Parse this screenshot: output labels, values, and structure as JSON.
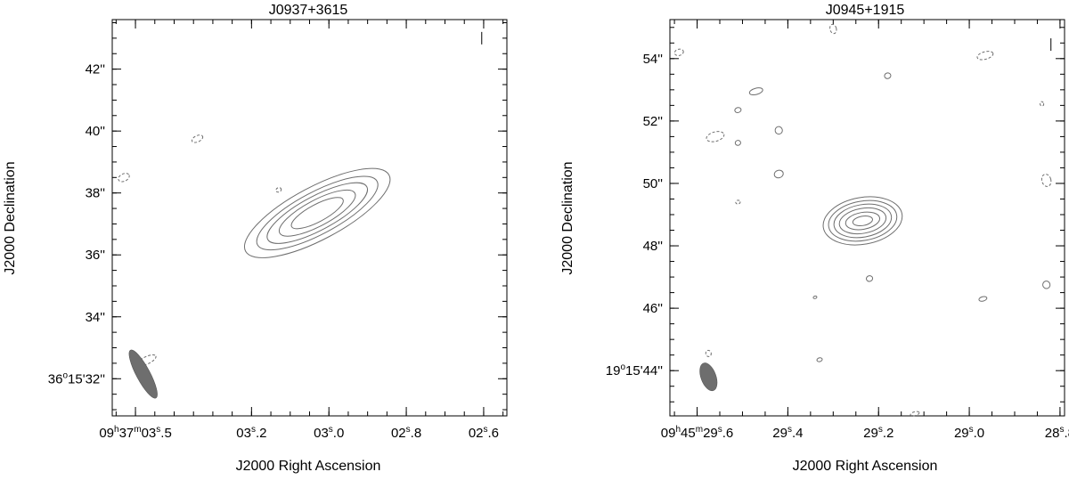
{
  "chart_data": [
    {
      "type": "contour",
      "title": "J0937+3615",
      "xlabel": "J2000 Right Ascension",
      "ylabel": "J2000 Declination",
      "x_unit": "seconds of RA",
      "y_unit": "arcsec (Dec offset)",
      "x_range": [
        3.56,
        2.54
      ],
      "y_range": [
        30.8,
        43.6
      ],
      "x_ticks": [
        {
          "value": 3.5,
          "main": "09",
          "sup1": "h",
          "mid": "37",
          "sup2": "m",
          "pre": "03",
          "sup3": "s",
          "post": ".5"
        },
        {
          "value": 3.2,
          "main": "",
          "sup1": "",
          "mid": "",
          "sup2": "",
          "pre": "03",
          "sup3": "s",
          "post": ".2"
        },
        {
          "value": 3.0,
          "main": "",
          "sup1": "",
          "mid": "",
          "sup2": "",
          "pre": "03",
          "sup3": "s",
          "post": ".0"
        },
        {
          "value": 2.8,
          "main": "",
          "sup1": "",
          "mid": "",
          "sup2": "",
          "pre": "02",
          "sup3": "s",
          "post": ".8"
        },
        {
          "value": 2.6,
          "main": "",
          "sup1": "",
          "mid": "",
          "sup2": "",
          "pre": "02",
          "sup3": "s",
          "post": ".6"
        }
      ],
      "y_ticks": [
        {
          "value": 32,
          "pre": "36",
          "sup": "o",
          "post": "15'32''"
        },
        {
          "value": 34,
          "pre": "",
          "sup": "",
          "post": "34''"
        },
        {
          "value": 36,
          "pre": "",
          "sup": "",
          "post": "36''"
        },
        {
          "value": 38,
          "pre": "",
          "sup": "",
          "post": "38''"
        },
        {
          "value": 40,
          "pre": "",
          "sup": "",
          "post": "40''"
        },
        {
          "value": 42,
          "pre": "",
          "sup": "",
          "post": "42''"
        }
      ],
      "x_minor_step": 0.05,
      "y_minor_step": 0.5,
      "source": {
        "center_x": 3.03,
        "center_y": 37.35,
        "levels": [
          {
            "dx": 0.075,
            "dy": 0.28
          },
          {
            "dx": 0.11,
            "dy": 0.42
          },
          {
            "dx": 0.145,
            "dy": 0.55
          },
          {
            "dx": 0.175,
            "dy": 0.68
          },
          {
            "dx": 0.21,
            "dy": 0.85
          }
        ],
        "angle_deg": -28
      },
      "negative_contours": [
        {
          "x": 3.34,
          "y": 39.75,
          "dx": 0.015,
          "dy": 0.1
        },
        {
          "x": 3.53,
          "y": 38.5,
          "dx": 0.015,
          "dy": 0.12
        },
        {
          "x": 3.13,
          "y": 38.1,
          "dx": 0.007,
          "dy": 0.07
        },
        {
          "x": 3.47,
          "y": 32.6,
          "dx": 0.025,
          "dy": 0.12
        }
      ],
      "beam": {
        "x": 3.48,
        "y": 32.15,
        "major": 0.07,
        "minor": 0.22,
        "angle_deg": -28
      },
      "marker": {
        "x": 2.605,
        "y": 43.0
      }
    },
    {
      "type": "contour",
      "title": "J0945+1915",
      "xlabel": "J2000 Right Ascension",
      "ylabel": "J2000 Declination",
      "x_unit": "seconds of RA",
      "y_unit": "arcsec (Dec offset)",
      "x_range": [
        29.66,
        28.79
      ],
      "y_range": [
        42.55,
        55.25
      ],
      "x_ticks": [
        {
          "value": 29.6,
          "main": "09",
          "sup1": "h",
          "mid": "45",
          "sup2": "m",
          "pre": "29",
          "sup3": "s",
          "post": ".6"
        },
        {
          "value": 29.4,
          "main": "",
          "sup1": "",
          "mid": "",
          "sup2": "",
          "pre": "29",
          "sup3": "s",
          "post": ".4"
        },
        {
          "value": 29.2,
          "main": "",
          "sup1": "",
          "mid": "",
          "sup2": "",
          "pre": "29",
          "sup3": "s",
          "post": ".2"
        },
        {
          "value": 29.0,
          "main": "",
          "sup1": "",
          "mid": "",
          "sup2": "",
          "pre": "29",
          "sup3": "s",
          "post": ".0"
        },
        {
          "value": 28.8,
          "main": "",
          "sup1": "",
          "mid": "",
          "sup2": "",
          "pre": "28",
          "sup3": "s",
          "post": ".8"
        }
      ],
      "y_ticks": [
        {
          "value": 44,
          "pre": "19",
          "sup": "o",
          "post": "15'44''"
        },
        {
          "value": 46,
          "pre": "",
          "sup": "",
          "post": "46''"
        },
        {
          "value": 48,
          "pre": "",
          "sup": "",
          "post": "48''"
        },
        {
          "value": 50,
          "pre": "",
          "sup": "",
          "post": "50''"
        },
        {
          "value": 52,
          "pre": "",
          "sup": "",
          "post": "52''"
        },
        {
          "value": 54,
          "pre": "",
          "sup": "",
          "post": "54''"
        }
      ],
      "x_minor_step": 0.05,
      "y_minor_step": 0.5,
      "source": {
        "center_x": 29.235,
        "center_y": 48.8,
        "levels": [
          {
            "dx": 0.022,
            "dy": 0.15
          },
          {
            "dx": 0.038,
            "dy": 0.27
          },
          {
            "dx": 0.052,
            "dy": 0.4
          },
          {
            "dx": 0.064,
            "dy": 0.52
          },
          {
            "dx": 0.076,
            "dy": 0.63
          },
          {
            "dx": 0.088,
            "dy": 0.75
          }
        ],
        "angle_deg": -10
      },
      "noise_contours": [
        {
          "x": 29.47,
          "y": 52.95,
          "dx": 0.015,
          "dy": 0.1,
          "neg": false
        },
        {
          "x": 29.51,
          "y": 52.35,
          "dx": 0.007,
          "dy": 0.08,
          "neg": false
        },
        {
          "x": 29.42,
          "y": 51.7,
          "dx": 0.008,
          "dy": 0.12,
          "neg": false
        },
        {
          "x": 29.51,
          "y": 51.3,
          "dx": 0.006,
          "dy": 0.08,
          "neg": false
        },
        {
          "x": 29.42,
          "y": 50.3,
          "dx": 0.01,
          "dy": 0.12,
          "neg": false
        },
        {
          "x": 29.18,
          "y": 53.45,
          "dx": 0.007,
          "dy": 0.09,
          "neg": false
        },
        {
          "x": 29.22,
          "y": 46.95,
          "dx": 0.007,
          "dy": 0.09,
          "neg": false
        },
        {
          "x": 28.97,
          "y": 46.3,
          "dx": 0.009,
          "dy": 0.07,
          "neg": false
        },
        {
          "x": 28.83,
          "y": 46.75,
          "dx": 0.008,
          "dy": 0.12,
          "neg": false
        },
        {
          "x": 29.34,
          "y": 46.35,
          "dx": 0.004,
          "dy": 0.04,
          "neg": false
        },
        {
          "x": 29.33,
          "y": 44.35,
          "dx": 0.006,
          "dy": 0.06,
          "neg": false
        },
        {
          "x": 29.56,
          "y": 51.5,
          "dx": 0.02,
          "dy": 0.15,
          "neg": true
        },
        {
          "x": 28.965,
          "y": 54.1,
          "dx": 0.018,
          "dy": 0.12,
          "neg": true
        },
        {
          "x": 29.3,
          "y": 54.95,
          "dx": 0.007,
          "dy": 0.15,
          "neg": true
        },
        {
          "x": 29.64,
          "y": 54.2,
          "dx": 0.01,
          "dy": 0.1,
          "neg": true
        },
        {
          "x": 28.83,
          "y": 50.1,
          "dx": 0.01,
          "dy": 0.2,
          "neg": true
        },
        {
          "x": 28.84,
          "y": 52.55,
          "dx": 0.004,
          "dy": 0.07,
          "neg": true
        },
        {
          "x": 29.575,
          "y": 44.55,
          "dx": 0.006,
          "dy": 0.1,
          "neg": true
        },
        {
          "x": 29.51,
          "y": 49.4,
          "dx": 0.005,
          "dy": 0.06,
          "neg": true
        },
        {
          "x": 29.12,
          "y": 42.62,
          "dx": 0.01,
          "dy": 0.06,
          "neg": true
        }
      ],
      "beam": {
        "x": 29.575,
        "y": 43.8,
        "major": 0.032,
        "minor": 0.24,
        "angle_deg": -20
      },
      "marker": {
        "x": 28.82,
        "y": 54.45
      }
    }
  ]
}
